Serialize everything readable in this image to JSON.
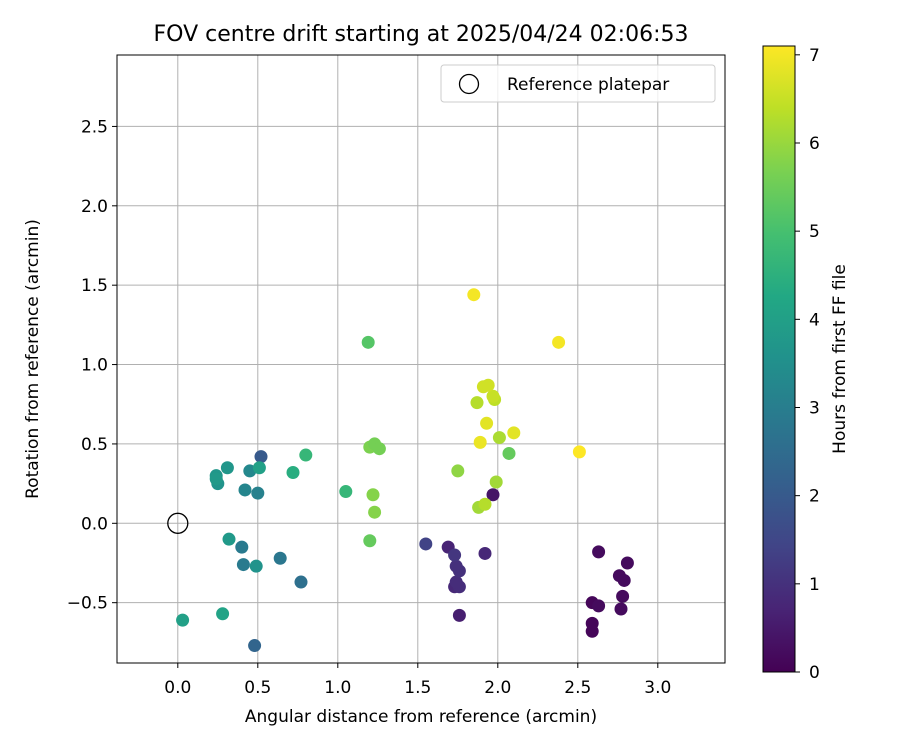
{
  "chart_data": {
    "type": "scatter",
    "title": "FOV centre drift starting at 2025/04/24 02:06:53",
    "xlabel": "Angular distance from reference (arcmin)",
    "ylabel": "Rotation from reference (arcmin)",
    "xlim": [
      -0.38,
      3.42
    ],
    "ylim": [
      -0.88,
      2.95
    ],
    "xticks": [
      "0.0",
      "0.5",
      "1.0",
      "1.5",
      "2.0",
      "2.5",
      "3.0"
    ],
    "xtick_values": [
      0,
      0.5,
      1.0,
      1.5,
      2.0,
      2.5,
      3.0
    ],
    "yticks": [
      "−0.5",
      "0.0",
      "0.5",
      "1.0",
      "1.5",
      "2.0",
      "2.5"
    ],
    "ytick_values": [
      -0.5,
      0,
      0.5,
      1.0,
      1.5,
      2.0,
      2.5
    ],
    "grid": true,
    "legend": {
      "position": "top-right",
      "entries": [
        {
          "label": "Reference platepar",
          "marker": "open-circle"
        }
      ]
    },
    "reference_point": {
      "x": 0.0,
      "y": 0.0
    },
    "colorbar": {
      "label": "Hours from first FF file",
      "colormap": "viridis",
      "range": [
        0,
        7.1
      ],
      "ticks": [
        "0",
        "1",
        "2",
        "3",
        "4",
        "5",
        "6",
        "7"
      ],
      "tick_values": [
        0,
        1,
        2,
        3,
        4,
        5,
        6,
        7
      ]
    },
    "points": [
      {
        "x": 2.59,
        "y": -0.5,
        "c": 0.1
      },
      {
        "x": 2.59,
        "y": -0.63,
        "c": 0.1
      },
      {
        "x": 2.59,
        "y": -0.68,
        "c": 0.1
      },
      {
        "x": 2.63,
        "y": -0.52,
        "c": 0.2
      },
      {
        "x": 2.63,
        "y": -0.18,
        "c": 0.2
      },
      {
        "x": 2.76,
        "y": -0.33,
        "c": 0.2
      },
      {
        "x": 2.77,
        "y": -0.54,
        "c": 0.2
      },
      {
        "x": 2.78,
        "y": -0.46,
        "c": 0.2
      },
      {
        "x": 2.79,
        "y": -0.36,
        "c": 0.2
      },
      {
        "x": 2.81,
        "y": -0.25,
        "c": 0.2
      },
      {
        "x": 1.97,
        "y": 0.18,
        "c": 0.4
      },
      {
        "x": 1.76,
        "y": -0.58,
        "c": 0.6
      },
      {
        "x": 1.69,
        "y": -0.15,
        "c": 0.7
      },
      {
        "x": 1.92,
        "y": -0.19,
        "c": 0.8
      },
      {
        "x": 1.73,
        "y": -0.4,
        "c": 0.8
      },
      {
        "x": 1.76,
        "y": -0.4,
        "c": 0.9
      },
      {
        "x": 1.74,
        "y": -0.37,
        "c": 0.9
      },
      {
        "x": 1.76,
        "y": -0.3,
        "c": 1.0
      },
      {
        "x": 1.74,
        "y": -0.27,
        "c": 1.0
      },
      {
        "x": 1.73,
        "y": -0.2,
        "c": 1.1
      },
      {
        "x": 1.55,
        "y": -0.13,
        "c": 1.4
      },
      {
        "x": 0.52,
        "y": 0.42,
        "c": 2.0
      },
      {
        "x": 0.48,
        "y": -0.77,
        "c": 2.3
      },
      {
        "x": 0.77,
        "y": -0.37,
        "c": 2.6
      },
      {
        "x": 0.64,
        "y": -0.22,
        "c": 2.8
      },
      {
        "x": 0.4,
        "y": -0.15,
        "c": 2.9
      },
      {
        "x": 0.41,
        "y": -0.26,
        "c": 2.9
      },
      {
        "x": 0.5,
        "y": 0.19,
        "c": 3.1
      },
      {
        "x": 0.42,
        "y": 0.21,
        "c": 3.2
      },
      {
        "x": 0.45,
        "y": 0.33,
        "c": 3.3
      },
      {
        "x": 0.49,
        "y": -0.27,
        "c": 3.6
      },
      {
        "x": 0.31,
        "y": 0.35,
        "c": 3.7
      },
      {
        "x": 0.32,
        "y": -0.1,
        "c": 3.8
      },
      {
        "x": 0.24,
        "y": 0.3,
        "c": 3.7
      },
      {
        "x": 0.25,
        "y": 0.25,
        "c": 3.6
      },
      {
        "x": 0.24,
        "y": 0.28,
        "c": 3.8
      },
      {
        "x": 0.51,
        "y": 0.35,
        "c": 4.0
      },
      {
        "x": 0.28,
        "y": -0.57,
        "c": 4.1
      },
      {
        "x": 0.03,
        "y": -0.61,
        "c": 4.0
      },
      {
        "x": 0.72,
        "y": 0.32,
        "c": 4.4
      },
      {
        "x": 0.8,
        "y": 0.43,
        "c": 4.7
      },
      {
        "x": 1.05,
        "y": 0.2,
        "c": 4.7
      },
      {
        "x": 1.19,
        "y": 1.14,
        "c": 5.2
      },
      {
        "x": 1.2,
        "y": -0.11,
        "c": 5.4
      },
      {
        "x": 1.2,
        "y": 0.48,
        "c": 5.7
      },
      {
        "x": 1.23,
        "y": 0.5,
        "c": 5.6
      },
      {
        "x": 1.26,
        "y": 0.47,
        "c": 5.6
      },
      {
        "x": 1.22,
        "y": 0.18,
        "c": 5.8
      },
      {
        "x": 1.23,
        "y": 0.07,
        "c": 5.8
      },
      {
        "x": 1.75,
        "y": 0.33,
        "c": 5.9
      },
      {
        "x": 2.07,
        "y": 0.44,
        "c": 5.4
      },
      {
        "x": 1.99,
        "y": 0.26,
        "c": 6.1
      },
      {
        "x": 1.88,
        "y": 0.1,
        "c": 6.1
      },
      {
        "x": 1.92,
        "y": 0.12,
        "c": 6.3
      },
      {
        "x": 2.01,
        "y": 0.54,
        "c": 6.2
      },
      {
        "x": 1.87,
        "y": 0.76,
        "c": 6.3
      },
      {
        "x": 1.98,
        "y": 0.78,
        "c": 6.4
      },
      {
        "x": 1.97,
        "y": 0.8,
        "c": 6.5
      },
      {
        "x": 1.91,
        "y": 0.86,
        "c": 6.6
      },
      {
        "x": 1.94,
        "y": 0.87,
        "c": 6.6
      },
      {
        "x": 1.93,
        "y": 0.63,
        "c": 6.8
      },
      {
        "x": 1.89,
        "y": 0.51,
        "c": 6.9
      },
      {
        "x": 2.1,
        "y": 0.57,
        "c": 6.8
      },
      {
        "x": 1.85,
        "y": 1.44,
        "c": 7.0
      },
      {
        "x": 2.38,
        "y": 1.14,
        "c": 7.0
      },
      {
        "x": 2.51,
        "y": 0.45,
        "c": 7.1
      }
    ]
  }
}
